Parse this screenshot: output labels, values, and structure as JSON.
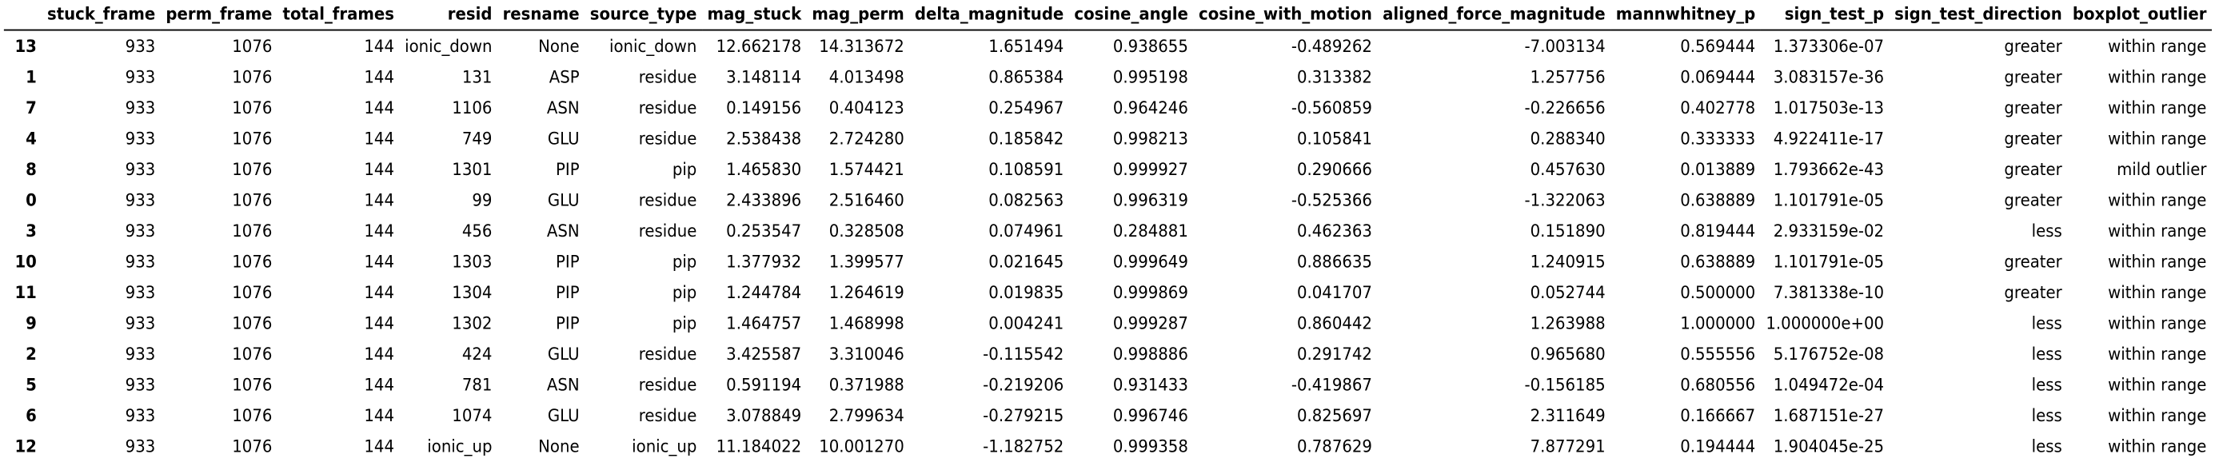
{
  "columns": [
    "",
    "stuck_frame",
    "perm_frame",
    "total_frames",
    "resid",
    "resname",
    "source_type",
    "mag_stuck",
    "mag_perm",
    "delta_magnitude",
    "cosine_angle",
    "cosine_with_motion",
    "aligned_force_magnitude",
    "mannwhitney_p",
    "sign_test_p",
    "sign_test_direction",
    "boxplot_outlier"
  ],
  "rows": [
    {
      "index": "13",
      "cells": [
        "933",
        "1076",
        "144",
        "ionic_down",
        "None",
        "ionic_down",
        "12.662178",
        "14.313672",
        "1.651494",
        "0.938655",
        "-0.489262",
        "-7.003134",
        "0.569444",
        "1.373306e-07",
        "greater",
        "within range"
      ]
    },
    {
      "index": "1",
      "cells": [
        "933",
        "1076",
        "144",
        "131",
        "ASP",
        "residue",
        "3.148114",
        "4.013498",
        "0.865384",
        "0.995198",
        "0.313382",
        "1.257756",
        "0.069444",
        "3.083157e-36",
        "greater",
        "within range"
      ]
    },
    {
      "index": "7",
      "cells": [
        "933",
        "1076",
        "144",
        "1106",
        "ASN",
        "residue",
        "0.149156",
        "0.404123",
        "0.254967",
        "0.964246",
        "-0.560859",
        "-0.226656",
        "0.402778",
        "1.017503e-13",
        "greater",
        "within range"
      ]
    },
    {
      "index": "4",
      "cells": [
        "933",
        "1076",
        "144",
        "749",
        "GLU",
        "residue",
        "2.538438",
        "2.724280",
        "0.185842",
        "0.998213",
        "0.105841",
        "0.288340",
        "0.333333",
        "4.922411e-17",
        "greater",
        "within range"
      ]
    },
    {
      "index": "8",
      "cells": [
        "933",
        "1076",
        "144",
        "1301",
        "PIP",
        "pip",
        "1.465830",
        "1.574421",
        "0.108591",
        "0.999927",
        "0.290666",
        "0.457630",
        "0.013889",
        "1.793662e-43",
        "greater",
        "mild outlier"
      ]
    },
    {
      "index": "0",
      "cells": [
        "933",
        "1076",
        "144",
        "99",
        "GLU",
        "residue",
        "2.433896",
        "2.516460",
        "0.082563",
        "0.996319",
        "-0.525366",
        "-1.322063",
        "0.638889",
        "1.101791e-05",
        "greater",
        "within range"
      ]
    },
    {
      "index": "3",
      "cells": [
        "933",
        "1076",
        "144",
        "456",
        "ASN",
        "residue",
        "0.253547",
        "0.328508",
        "0.074961",
        "0.284881",
        "0.462363",
        "0.151890",
        "0.819444",
        "2.933159e-02",
        "less",
        "within range"
      ]
    },
    {
      "index": "10",
      "cells": [
        "933",
        "1076",
        "144",
        "1303",
        "PIP",
        "pip",
        "1.377932",
        "1.399577",
        "0.021645",
        "0.999649",
        "0.886635",
        "1.240915",
        "0.638889",
        "1.101791e-05",
        "greater",
        "within range"
      ]
    },
    {
      "index": "11",
      "cells": [
        "933",
        "1076",
        "144",
        "1304",
        "PIP",
        "pip",
        "1.244784",
        "1.264619",
        "0.019835",
        "0.999869",
        "0.041707",
        "0.052744",
        "0.500000",
        "7.381338e-10",
        "greater",
        "within range"
      ]
    },
    {
      "index": "9",
      "cells": [
        "933",
        "1076",
        "144",
        "1302",
        "PIP",
        "pip",
        "1.464757",
        "1.468998",
        "0.004241",
        "0.999287",
        "0.860442",
        "1.263988",
        "1.000000",
        "1.000000e+00",
        "less",
        "within range"
      ]
    },
    {
      "index": "2",
      "cells": [
        "933",
        "1076",
        "144",
        "424",
        "GLU",
        "residue",
        "3.425587",
        "3.310046",
        "-0.115542",
        "0.998886",
        "0.291742",
        "0.965680",
        "0.555556",
        "5.176752e-08",
        "less",
        "within range"
      ]
    },
    {
      "index": "5",
      "cells": [
        "933",
        "1076",
        "144",
        "781",
        "ASN",
        "residue",
        "0.591194",
        "0.371988",
        "-0.219206",
        "0.931433",
        "-0.419867",
        "-0.156185",
        "0.680556",
        "1.049472e-04",
        "less",
        "within range"
      ]
    },
    {
      "index": "6",
      "cells": [
        "933",
        "1076",
        "144",
        "1074",
        "GLU",
        "residue",
        "3.078849",
        "2.799634",
        "-0.279215",
        "0.996746",
        "0.825697",
        "2.311649",
        "0.166667",
        "1.687151e-27",
        "less",
        "within range"
      ]
    },
    {
      "index": "12",
      "cells": [
        "933",
        "1076",
        "144",
        "ionic_up",
        "None",
        "ionic_up",
        "11.184022",
        "10.001270",
        "-1.182752",
        "0.999358",
        "0.787629",
        "7.877291",
        "0.194444",
        "1.904045e-25",
        "less",
        "within range"
      ]
    }
  ]
}
